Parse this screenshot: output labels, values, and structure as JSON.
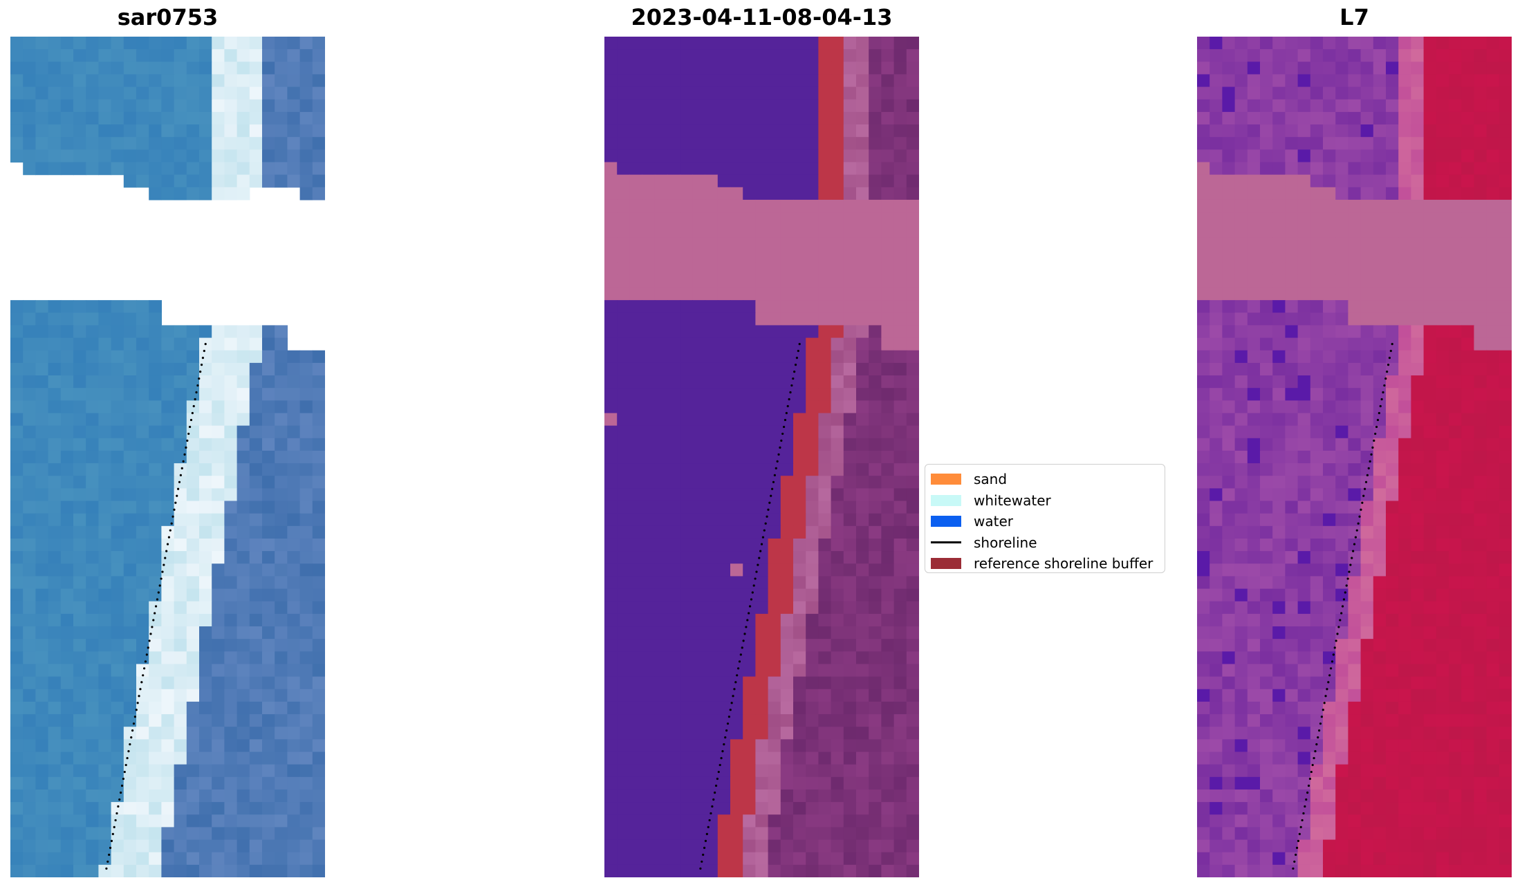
{
  "panels": {
    "rgb": {
      "title": "sar0753"
    },
    "classes": {
      "title": "2023-04-11-08-04-13"
    },
    "index": {
      "title": "L7"
    }
  },
  "legend": {
    "items": [
      {
        "label": "sand",
        "kind": "patch",
        "color": "#ff8c3a"
      },
      {
        "label": "whitewater",
        "kind": "patch",
        "color": "#c8f9f7"
      },
      {
        "label": "water",
        "kind": "patch",
        "color": "#0b5ff0"
      },
      {
        "label": "shoreline",
        "kind": "line",
        "color": "#000000"
      },
      {
        "label": "reference shoreline buffer",
        "kind": "patch",
        "color": "#9b2c36"
      }
    ]
  },
  "colors": {
    "classes_water": "#55239a",
    "classes_cloud": "#bc6796",
    "classes_buffer": "#bd3648",
    "index_low": "#8a35a0",
    "index_high": "#c9154c",
    "rgb_water": "#2f7ab8",
    "rgb_white": "#eef6fb",
    "shoreline": "#000000"
  }
}
